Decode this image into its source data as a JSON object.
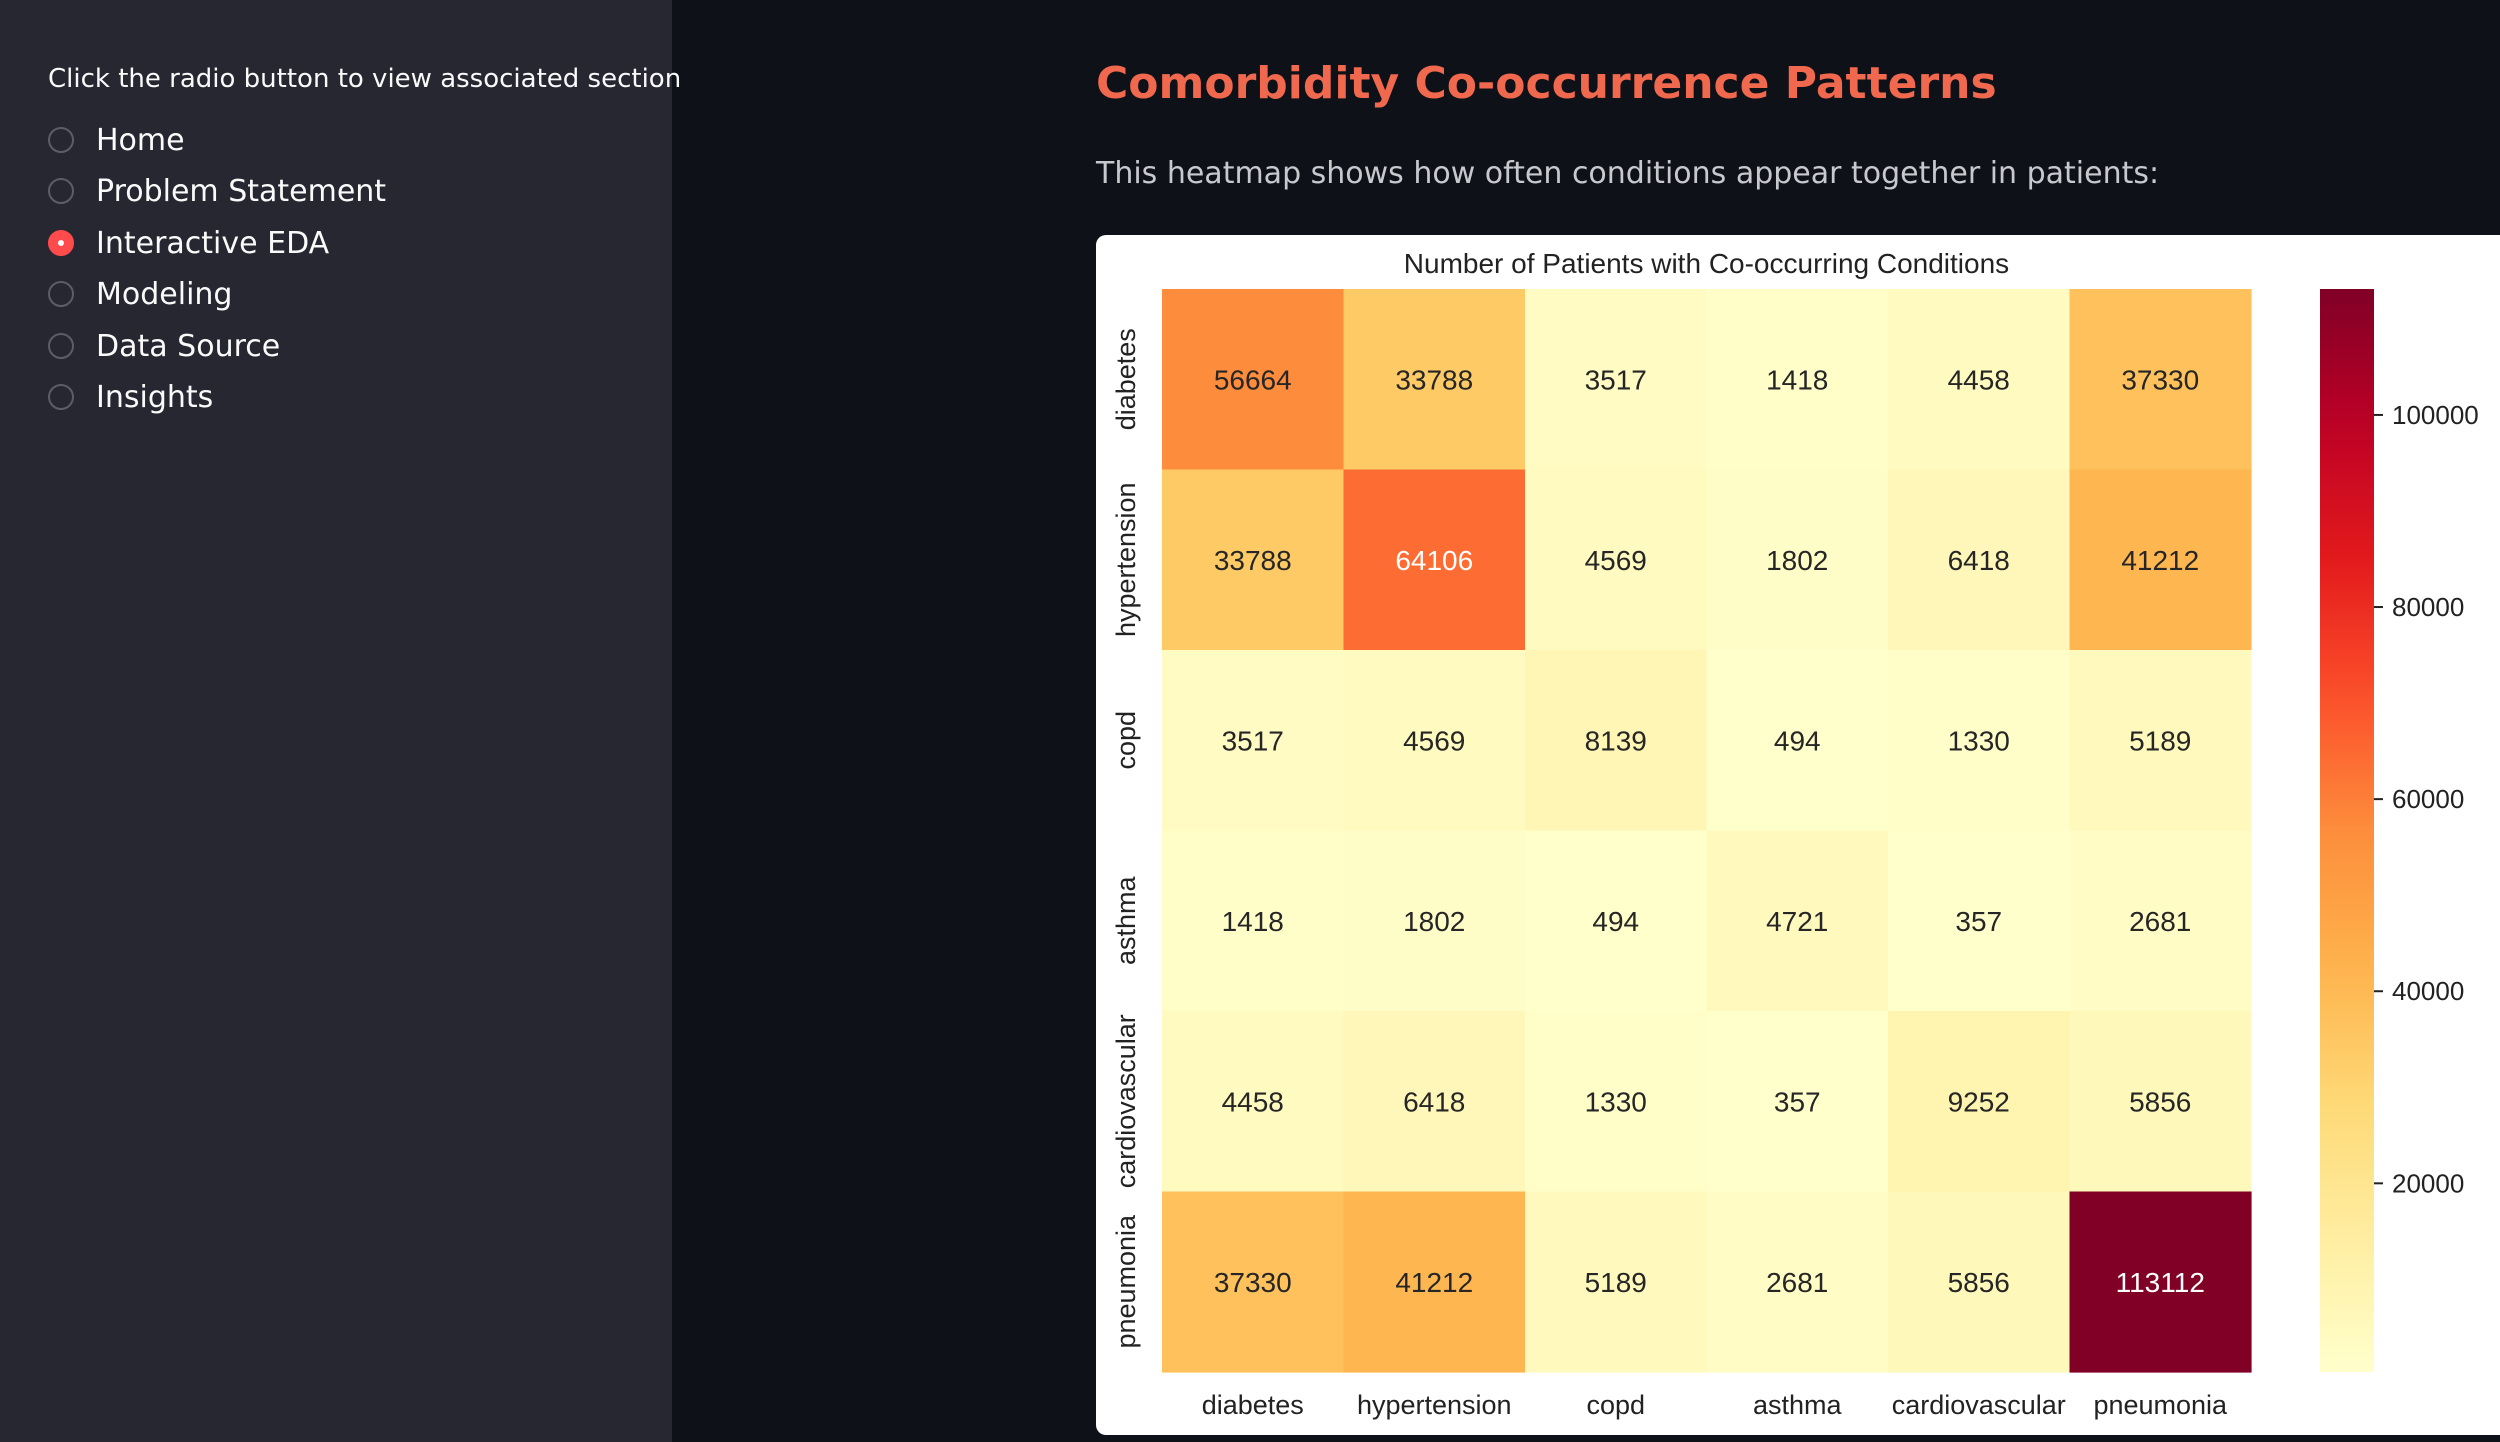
{
  "sidebar": {
    "heading": "Click the radio button to view associated section",
    "items": [
      {
        "label": "Home",
        "selected": false
      },
      {
        "label": "Problem Statement",
        "selected": false
      },
      {
        "label": "Interactive EDA",
        "selected": true
      },
      {
        "label": "Modeling",
        "selected": false
      },
      {
        "label": "Data Source",
        "selected": false
      },
      {
        "label": "Insights",
        "selected": false
      }
    ]
  },
  "main": {
    "title": "Comorbidity Co-occurrence Patterns",
    "description": "This heatmap shows how often conditions appear together in patients:"
  },
  "colors": {
    "accent": "#ff4b4b",
    "title": "#f0684d",
    "sidebar_bg": "#262730",
    "page_bg": "#0e1117",
    "colormap": "YlOrRd"
  },
  "chart_data": {
    "type": "heatmap",
    "title": "Number of Patients with Co-occurring Conditions",
    "categories": [
      "diabetes",
      "hypertension",
      "copd",
      "asthma",
      "cardiovascular",
      "pneumonia"
    ],
    "matrix": [
      [
        56664,
        33788,
        3517,
        1418,
        4458,
        37330
      ],
      [
        33788,
        64106,
        4569,
        1802,
        6418,
        41212
      ],
      [
        3517,
        4569,
        8139,
        494,
        1330,
        5189
      ],
      [
        1418,
        1802,
        494,
        4721,
        357,
        2681
      ],
      [
        4458,
        6418,
        1330,
        357,
        9252,
        5856
      ],
      [
        37330,
        41212,
        5189,
        2681,
        5856,
        113112
      ]
    ],
    "colorbar": {
      "range": [
        357,
        113112
      ],
      "ticks": [
        20000,
        40000,
        60000,
        80000,
        100000
      ]
    },
    "annotations": true
  }
}
